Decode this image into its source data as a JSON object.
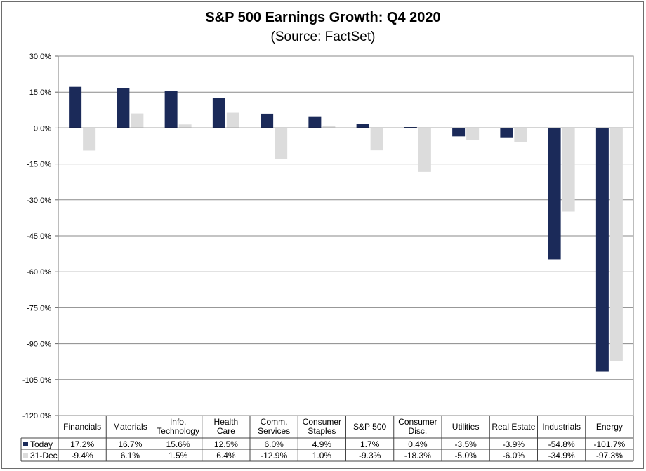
{
  "chart_data": {
    "type": "bar",
    "title": "S&P 500 Earnings Growth:  Q4 2020",
    "subtitle": "(Source: FactSet)",
    "categories": [
      [
        "Financials"
      ],
      [
        "Materials"
      ],
      [
        "Info.",
        "Technology"
      ],
      [
        "Health",
        "Care"
      ],
      [
        "Comm.",
        "Services"
      ],
      [
        "Consumer",
        "Staples"
      ],
      [
        "S&P 500"
      ],
      [
        "Consumer",
        "Disc."
      ],
      [
        "Utilities"
      ],
      [
        "Real Estate"
      ],
      [
        "Industrials"
      ],
      [
        "Energy"
      ]
    ],
    "series": [
      {
        "name": "Today",
        "color": "#1b2a59",
        "values": [
          17.2,
          16.7,
          15.6,
          12.5,
          6.0,
          4.9,
          1.7,
          0.4,
          -3.5,
          -3.9,
          -54.8,
          -101.7
        ],
        "labels": [
          "17.2%",
          "16.7%",
          "15.6%",
          "12.5%",
          "6.0%",
          "4.9%",
          "1.7%",
          "0.4%",
          "-3.5%",
          "-3.9%",
          "-54.8%",
          "-101.7%"
        ]
      },
      {
        "name": "31-Dec",
        "color": "#dcdcdc",
        "values": [
          -9.4,
          6.1,
          1.5,
          6.4,
          -12.9,
          1.0,
          -9.3,
          -18.3,
          -5.0,
          -6.0,
          -34.9,
          -97.3
        ],
        "labels": [
          "-9.4%",
          "6.1%",
          "1.5%",
          "6.4%",
          "-12.9%",
          "1.0%",
          "-9.3%",
          "-18.3%",
          "-5.0%",
          "-6.0%",
          "-34.9%",
          "-97.3%"
        ]
      }
    ],
    "ylim": [
      -120,
      30
    ],
    "yticks": [
      30,
      15,
      0,
      -15,
      -30,
      -45,
      -60,
      -75,
      -90,
      -105,
      -120
    ],
    "ytick_labels": [
      "30.0%",
      "15.0%",
      "0.0%",
      "-15.0%",
      "-30.0%",
      "-45.0%",
      "-60.0%",
      "-75.0%",
      "-90.0%",
      "-105.0%",
      "-120.0%"
    ],
    "grid": true,
    "legend": "data-table"
  }
}
